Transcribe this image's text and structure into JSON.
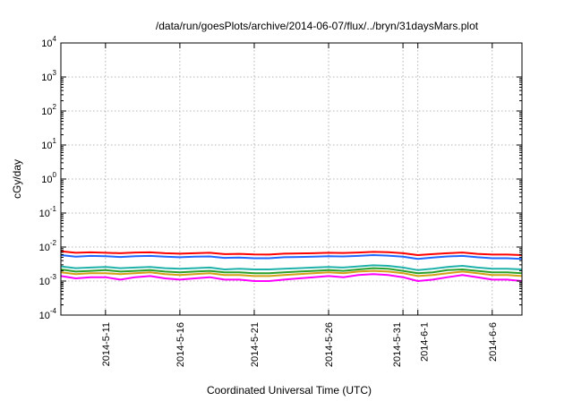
{
  "chart_data": {
    "type": "line",
    "title": "/data/run/goesPlots/archive/2014-06-07/flux/../bryn/31daysMars.plot",
    "xlabel": "Coordinated Universal Time (UTC)",
    "ylabel": "cGy/day",
    "yscale": "log",
    "ylim": [
      0.0001,
      10000
    ],
    "y_ticks": [
      {
        "exp": "-4",
        "value": 0.0001
      },
      {
        "exp": "-3",
        "value": 0.001
      },
      {
        "exp": "-2",
        "value": 0.01
      },
      {
        "exp": "-1",
        "value": 0.1
      },
      {
        "exp": "0",
        "value": 1
      },
      {
        "exp": "1",
        "value": 10
      },
      {
        "exp": "2",
        "value": 100
      },
      {
        "exp": "3",
        "value": 1000
      },
      {
        "exp": "4",
        "value": 10000
      }
    ],
    "y_tick_base": "10",
    "xlim": [
      "2014-05-08",
      "2014-06-08"
    ],
    "x_ticks": [
      {
        "label": "2014-5-11",
        "date": "2014-05-11"
      },
      {
        "label": "2014-5-16",
        "date": "2014-05-16"
      },
      {
        "label": "2014-5-21",
        "date": "2014-05-21"
      },
      {
        "label": "2014-5-26",
        "date": "2014-05-26"
      },
      {
        "label": "2014-5-31",
        "date": "2014-05-31"
      },
      {
        "label": "2014-6-1",
        "date": "2014-06-01"
      },
      {
        "label": "2014-6-6",
        "date": "2014-06-06"
      }
    ],
    "grid": true,
    "legend": "none",
    "x": [
      "2014-05-08",
      "2014-05-09",
      "2014-05-10",
      "2014-05-11",
      "2014-05-12",
      "2014-05-13",
      "2014-05-14",
      "2014-05-15",
      "2014-05-16",
      "2014-05-17",
      "2014-05-18",
      "2014-05-19",
      "2014-05-20",
      "2014-05-21",
      "2014-05-22",
      "2014-05-23",
      "2014-05-24",
      "2014-05-25",
      "2014-05-26",
      "2014-05-27",
      "2014-05-28",
      "2014-05-29",
      "2014-05-30",
      "2014-05-31",
      "2014-06-01",
      "2014-06-02",
      "2014-06-03",
      "2014-06-04",
      "2014-06-05",
      "2014-06-06",
      "2014-06-07",
      "2014-06-08"
    ],
    "series": [
      {
        "color": "#ff0000",
        "values": [
          0.0075,
          0.0068,
          0.007,
          0.0068,
          0.0066,
          0.0069,
          0.007,
          0.0066,
          0.0064,
          0.0066,
          0.0068,
          0.0062,
          0.0063,
          0.0061,
          0.006,
          0.0064,
          0.0065,
          0.0066,
          0.0068,
          0.0067,
          0.0069,
          0.0072,
          0.0071,
          0.0066,
          0.0058,
          0.0062,
          0.0066,
          0.0069,
          0.0063,
          0.006,
          0.006,
          0.0058
        ]
      },
      {
        "color": "#1e66ff",
        "values": [
          0.0058,
          0.0052,
          0.0055,
          0.0054,
          0.0051,
          0.0054,
          0.0055,
          0.0052,
          0.005,
          0.0052,
          0.0053,
          0.0048,
          0.0049,
          0.0047,
          0.0047,
          0.005,
          0.0051,
          0.0052,
          0.0054,
          0.0053,
          0.0055,
          0.0058,
          0.0056,
          0.0052,
          0.0045,
          0.0049,
          0.0053,
          0.0055,
          0.005,
          0.0047,
          0.0047,
          0.0045
        ]
      },
      {
        "color": "#20b2aa",
        "values": [
          0.0027,
          0.0024,
          0.0025,
          0.0026,
          0.0024,
          0.0025,
          0.0026,
          0.0024,
          0.0023,
          0.0024,
          0.0025,
          0.0022,
          0.0023,
          0.0022,
          0.0022,
          0.0023,
          0.0024,
          0.0025,
          0.0026,
          0.0025,
          0.0027,
          0.0029,
          0.0028,
          0.0025,
          0.0021,
          0.0023,
          0.0026,
          0.0028,
          0.0025,
          0.0023,
          0.0023,
          0.0022
        ]
      },
      {
        "color": "#2ca02c",
        "values": [
          0.0022,
          0.0019,
          0.002,
          0.0021,
          0.0019,
          0.002,
          0.0021,
          0.0019,
          0.0018,
          0.0019,
          0.002,
          0.0018,
          0.0018,
          0.0017,
          0.0017,
          0.0018,
          0.0019,
          0.002,
          0.0021,
          0.002,
          0.0022,
          0.0024,
          0.0023,
          0.002,
          0.0017,
          0.0018,
          0.0021,
          0.0022,
          0.002,
          0.0018,
          0.0018,
          0.0017
        ]
      },
      {
        "color": "#d4a017",
        "values": [
          0.0018,
          0.0016,
          0.0017,
          0.0017,
          0.0016,
          0.0017,
          0.0018,
          0.0016,
          0.0015,
          0.0016,
          0.0017,
          0.0015,
          0.0015,
          0.0014,
          0.0014,
          0.0015,
          0.0016,
          0.0017,
          0.0018,
          0.0017,
          0.0019,
          0.002,
          0.0019,
          0.0017,
          0.0014,
          0.0015,
          0.0017,
          0.0019,
          0.0017,
          0.0015,
          0.0015,
          0.0014
        ]
      },
      {
        "color": "#ff00ff",
        "values": [
          0.0014,
          0.0012,
          0.0013,
          0.0013,
          0.0011,
          0.0013,
          0.0014,
          0.0012,
          0.0011,
          0.0012,
          0.0013,
          0.0011,
          0.0011,
          0.001,
          0.001,
          0.0011,
          0.0012,
          0.0013,
          0.0014,
          0.0013,
          0.0015,
          0.0016,
          0.0015,
          0.0013,
          0.001,
          0.0011,
          0.0013,
          0.0015,
          0.0013,
          0.0011,
          0.0011,
          0.001
        ]
      }
    ]
  }
}
